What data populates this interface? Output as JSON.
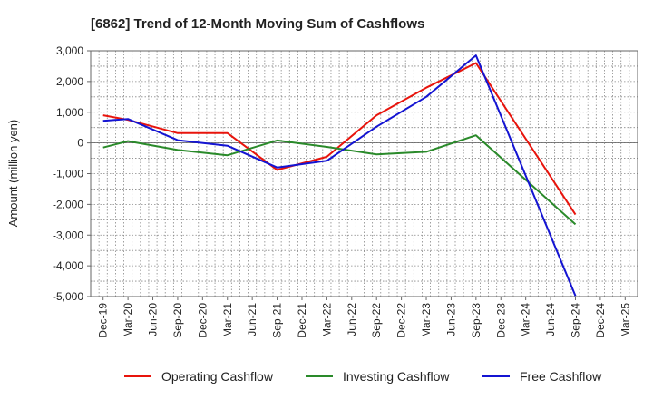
{
  "chart_data": {
    "type": "line",
    "title": "[6862]  Trend of 12-Month Moving Sum of Cashflows",
    "xlabel": "",
    "ylabel": "Amount (million yen)",
    "ylim": [
      -5000,
      3000
    ],
    "yticks": [
      3000,
      2000,
      1000,
      0,
      -1000,
      -2000,
      -3000,
      -4000,
      -5000
    ],
    "ytick_labels": [
      "3,000",
      "2,000",
      "1,000",
      "0",
      "-1,000",
      "-2,000",
      "-3,000",
      "-4,000",
      "-5,000"
    ],
    "categories": [
      "Dec-19",
      "Mar-20",
      "Jun-20",
      "Sep-20",
      "Dec-20",
      "Mar-21",
      "Jun-21",
      "Sep-21",
      "Dec-21",
      "Mar-22",
      "Jun-22",
      "Sep-22",
      "Dec-22",
      "Mar-23",
      "Jun-23",
      "Sep-23",
      "Dec-23",
      "Mar-24",
      "Jun-24",
      "Sep-24",
      "Dec-24",
      "Mar-25"
    ],
    "grid": true,
    "legend_position": "bottom",
    "series": [
      {
        "name": "Operating Cashflow",
        "color": "#e8140c",
        "values": [
          900,
          750,
          null,
          320,
          null,
          320,
          null,
          -880,
          null,
          -450,
          null,
          900,
          null,
          1800,
          null,
          2600,
          null,
          null,
          null,
          -2330,
          null,
          null
        ]
      },
      {
        "name": "Investing Cashflow",
        "color": "#2a8a2a",
        "values": [
          -150,
          60,
          null,
          -230,
          null,
          -400,
          null,
          80,
          null,
          -130,
          null,
          -370,
          null,
          -290,
          null,
          250,
          null,
          null,
          null,
          -2650,
          null,
          null
        ]
      },
      {
        "name": "Free Cashflow",
        "color": "#1414d2",
        "values": [
          720,
          780,
          null,
          90,
          null,
          -90,
          null,
          -800,
          null,
          -580,
          null,
          530,
          null,
          1500,
          null,
          2850,
          null,
          null,
          null,
          -4980,
          null,
          null
        ]
      }
    ]
  }
}
